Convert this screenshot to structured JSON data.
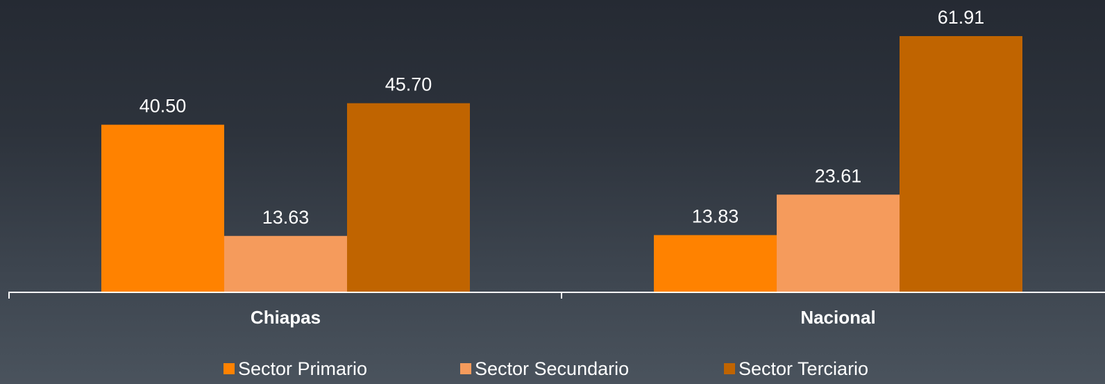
{
  "chart_data": {
    "type": "bar",
    "categories": [
      "Chiapas",
      "Nacional"
    ],
    "series": [
      {
        "name": "Sector Primario",
        "values": [
          40.5,
          13.83
        ],
        "color": "#ff8200"
      },
      {
        "name": "Sector Secundario",
        "values": [
          13.63,
          23.61
        ],
        "color": "#f59b5c"
      },
      {
        "name": "Sector Terciario",
        "values": [
          45.7,
          61.91
        ],
        "color": "#c06400"
      }
    ],
    "value_labels": [
      [
        "40.50",
        "13.83"
      ],
      [
        "13.63",
        "23.61"
      ],
      [
        "45.70",
        "61.91"
      ]
    ],
    "ylim": [
      0,
      61.91
    ],
    "grid": false,
    "legend_position": "bottom",
    "title": "",
    "xlabel": "",
    "ylabel": ""
  }
}
